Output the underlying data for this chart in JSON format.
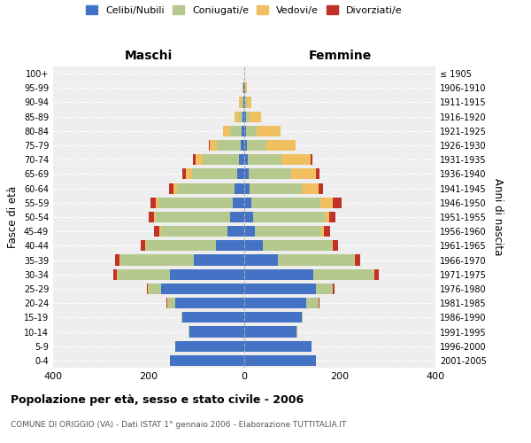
{
  "age_groups": [
    "0-4",
    "5-9",
    "10-14",
    "15-19",
    "20-24",
    "25-29",
    "30-34",
    "35-39",
    "40-44",
    "45-49",
    "50-54",
    "55-59",
    "60-64",
    "65-69",
    "70-74",
    "75-79",
    "80-84",
    "85-89",
    "90-94",
    "95-99",
    "100+"
  ],
  "birth_years": [
    "2001-2005",
    "1996-2000",
    "1991-1995",
    "1986-1990",
    "1981-1985",
    "1976-1980",
    "1971-1975",
    "1966-1970",
    "1961-1965",
    "1956-1960",
    "1951-1955",
    "1946-1950",
    "1941-1945",
    "1936-1940",
    "1931-1935",
    "1926-1930",
    "1921-1925",
    "1916-1920",
    "1911-1915",
    "1906-1910",
    "≤ 1905"
  ],
  "colors": {
    "celibi": "#4472C4",
    "coniugati": "#b5c98e",
    "vedovi": "#f0c060",
    "divorziati": "#c0312a"
  },
  "males": {
    "celibi": [
      155,
      145,
      115,
      130,
      145,
      175,
      155,
      105,
      60,
      35,
      30,
      25,
      20,
      15,
      12,
      8,
      5,
      4,
      2,
      1,
      0
    ],
    "coniugati": [
      0,
      0,
      2,
      2,
      15,
      25,
      110,
      155,
      145,
      140,
      155,
      155,
      120,
      95,
      75,
      50,
      25,
      8,
      4,
      1,
      0
    ],
    "vedovi": [
      0,
      0,
      0,
      0,
      2,
      2,
      2,
      2,
      2,
      2,
      3,
      5,
      8,
      12,
      15,
      15,
      15,
      8,
      5,
      2,
      0
    ],
    "divorziati": [
      0,
      0,
      0,
      0,
      1,
      2,
      8,
      8,
      10,
      12,
      12,
      12,
      10,
      8,
      5,
      1,
      0,
      0,
      0,
      0,
      0
    ]
  },
  "females": {
    "celibi": [
      150,
      140,
      110,
      120,
      130,
      150,
      145,
      70,
      38,
      22,
      18,
      15,
      12,
      10,
      8,
      5,
      4,
      3,
      2,
      1,
      0
    ],
    "coniugati": [
      0,
      0,
      2,
      3,
      25,
      35,
      125,
      160,
      145,
      140,
      150,
      145,
      108,
      88,
      70,
      42,
      22,
      8,
      4,
      1,
      0
    ],
    "vedovi": [
      0,
      0,
      0,
      0,
      1,
      1,
      2,
      2,
      3,
      5,
      10,
      25,
      35,
      52,
      60,
      60,
      50,
      25,
      8,
      3,
      0
    ],
    "divorziati": [
      0,
      0,
      0,
      0,
      1,
      2,
      10,
      10,
      10,
      12,
      12,
      18,
      10,
      8,
      5,
      1,
      0,
      0,
      0,
      0,
      0
    ]
  },
  "title": "Popolazione per età, sesso e stato civile - 2006",
  "subtitle": "COMUNE DI ORIGGIO (VA) - Dati ISTAT 1° gennaio 2006 - Elaborazione TUTTITALIA.IT",
  "xlabel_left": "Maschi",
  "xlabel_right": "Femmine",
  "ylabel_left": "Fasce di età",
  "ylabel_right": "Anni di nascita",
  "xlim": 400,
  "legend_labels": [
    "Celibi/Nubili",
    "Coniugati/e",
    "Vedovi/e",
    "Divorziati/e"
  ],
  "background_color": "#eeeeee",
  "bar_height": 0.75
}
